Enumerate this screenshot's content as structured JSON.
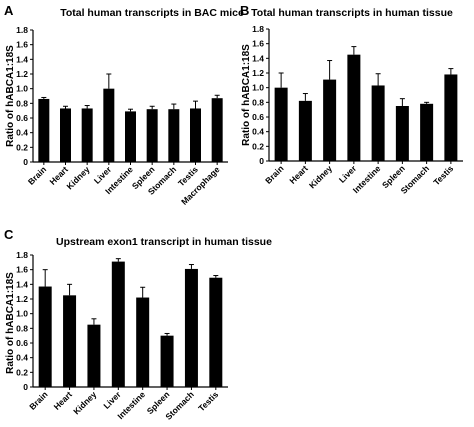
{
  "chart_data": [
    {
      "type": "bar",
      "panel_letter": "A",
      "title": "Total human transcripts in BAC mice",
      "ylabel": "Ratio of hABCA1:18S",
      "xlabel": "",
      "ylim": [
        0,
        1.8
      ],
      "yticks": [
        "0",
        "0.2",
        "0.4",
        "0.6",
        "0.8",
        "1.0",
        "1.2",
        "1.4",
        "1.6",
        "1.8"
      ],
      "categories": [
        "Brain",
        "Heart",
        "Kidney",
        "Liver",
        "Intestine",
        "Spleen",
        "Stomach",
        "Testis",
        "Macrophage"
      ],
      "values": [
        0.86,
        0.73,
        0.73,
        1.0,
        0.69,
        0.72,
        0.72,
        0.73,
        0.87
      ],
      "errors": [
        0.02,
        0.03,
        0.04,
        0.2,
        0.03,
        0.04,
        0.07,
        0.1,
        0.04
      ],
      "grid": false,
      "bar_color": "#000000"
    },
    {
      "type": "bar",
      "panel_letter": "B",
      "title": "Total human transcripts in human tissue",
      "ylabel": "Ratio of hABCA1:18S",
      "xlabel": "",
      "ylim": [
        0,
        1.8
      ],
      "yticks": [
        "0",
        "0.2",
        "0.4",
        "0.6",
        "0.8",
        "1.0",
        "1.2",
        "1.4",
        "1.6",
        "1.8"
      ],
      "categories": [
        "Brain",
        "Heart",
        "Kidney",
        "Liver",
        "Intestine",
        "Spleen",
        "Stomach",
        "Testis"
      ],
      "values": [
        1.0,
        0.82,
        1.11,
        1.45,
        1.03,
        0.75,
        0.78,
        1.18
      ],
      "errors": [
        0.2,
        0.1,
        0.26,
        0.11,
        0.16,
        0.1,
        0.02,
        0.08
      ],
      "grid": false,
      "bar_color": "#000000"
    },
    {
      "type": "bar",
      "panel_letter": "C",
      "title": "Upstream exon1 transcript in human tissue",
      "ylabel": "Ratio of hABCA1:18S",
      "xlabel": "",
      "ylim": [
        0,
        1.8
      ],
      "yticks": [
        "0",
        "0.2",
        "0.4",
        "0.6",
        "0.8",
        "1.0",
        "1.2",
        "1.4",
        "1.6",
        "1.8"
      ],
      "categories": [
        "Brain",
        "Heart",
        "Kidney",
        "Liver",
        "Intestine",
        "Spleen",
        "Stomach",
        "Testis"
      ],
      "values": [
        1.37,
        1.25,
        0.85,
        1.71,
        1.22,
        0.7,
        1.61,
        1.49
      ],
      "errors": [
        0.23,
        0.15,
        0.08,
        0.04,
        0.14,
        0.03,
        0.06,
        0.03
      ],
      "grid": false,
      "bar_color": "#000000"
    }
  ]
}
